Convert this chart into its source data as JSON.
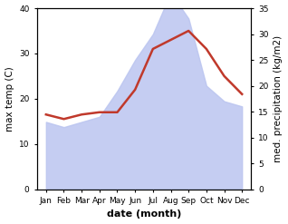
{
  "months": [
    "Jan",
    "Feb",
    "Mar",
    "Apr",
    "May",
    "Jun",
    "Jul",
    "Aug",
    "Sep",
    "Oct",
    "Nov",
    "Dec"
  ],
  "max_temp": [
    16.5,
    15.5,
    16.5,
    17,
    17,
    22,
    31,
    33,
    35,
    31,
    25,
    21
  ],
  "precipitation": [
    13,
    12,
    13,
    14,
    19,
    25,
    30,
    38,
    33,
    20,
    17,
    16
  ],
  "temp_ylim": [
    0,
    40
  ],
  "precip_ylim": [
    0,
    35
  ],
  "fill_color": "#bbc5f0",
  "fill_alpha": 0.85,
  "line_color": "#c0392b",
  "line_width": 1.8,
  "xlabel": "date (month)",
  "ylabel_left": "max temp (C)",
  "ylabel_right": "med. precipitation (kg/m2)",
  "xlabel_fontsize": 8,
  "ylabel_fontsize": 7.5,
  "tick_fontsize": 6.5,
  "bg_color": "#ffffff"
}
